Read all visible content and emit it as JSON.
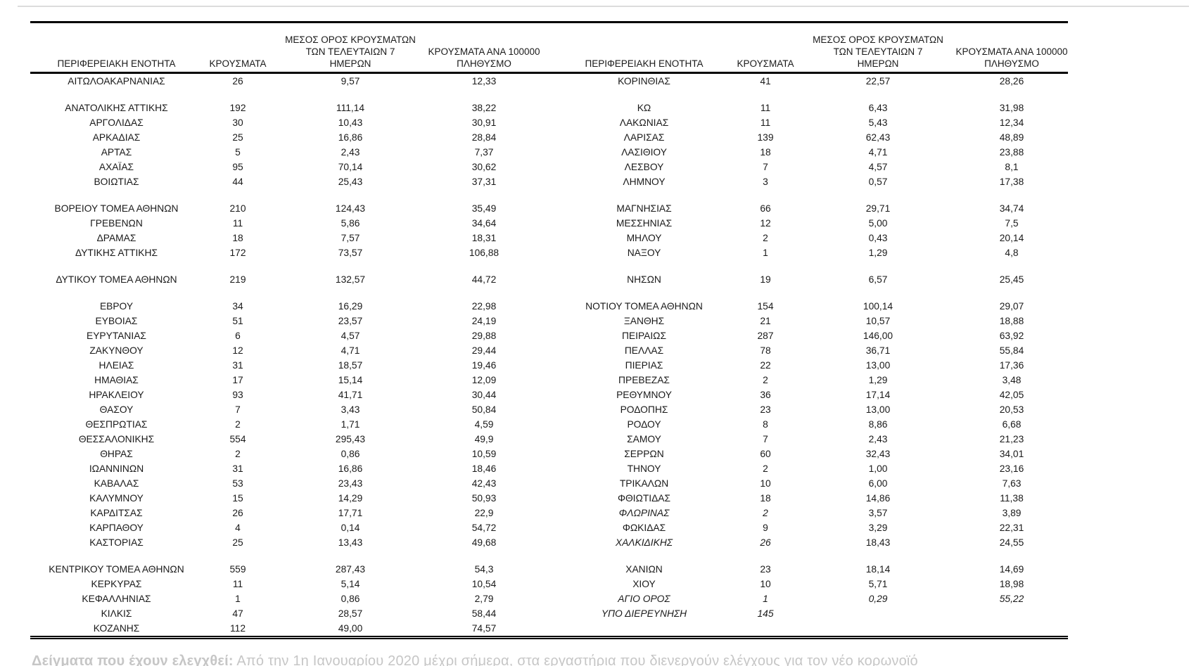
{
  "table": {
    "columns": {
      "region": "ΠΕΡΙΦΕΡΕΙΑΚΗ ΕΝΟΤΗΤΑ",
      "cases": "ΚΡΟΥΣΜΑΤΑ",
      "avg7_line1": "ΜΕΣΟΣ ΟΡΟΣ ΚΡΟΥΣΜΑΤΩΝ",
      "avg7_line2": "ΤΩΝ ΤΕΛΕΥΤΑΙΩΝ 7",
      "avg7_line3": "ΗΜΕΡΩΝ",
      "per100k_line1": "ΚΡΟΥΣΜΑΤΑ ΑΝΑ 100000",
      "per100k_line2": "ΠΛΗΘΥΣΜΟ"
    },
    "rows": [
      {
        "left": [
          "ΑΙΤΩΛΟΑΚΑΡΝΑΝΙΑΣ",
          "26",
          "9,57",
          "12,33"
        ],
        "right": [
          "ΚΟΡΙΝΘΙΑΣ",
          "41",
          "22,57",
          "28,26"
        ]
      },
      {
        "spacer": true
      },
      {
        "left": [
          "ΑΝΑΤΟΛΙΚΗΣ ΑΤΤΙΚΗΣ",
          "192",
          "111,14",
          "38,22"
        ],
        "right": [
          "ΚΩ",
          "11",
          "6,43",
          "31,98"
        ]
      },
      {
        "left": [
          "ΑΡΓΟΛΙΔΑΣ",
          "30",
          "10,43",
          "30,91"
        ],
        "right": [
          "ΛΑΚΩΝΙΑΣ",
          "11",
          "5,43",
          "12,34"
        ]
      },
      {
        "left": [
          "ΑΡΚΑΔΙΑΣ",
          "25",
          "16,86",
          "28,84"
        ],
        "right": [
          "ΛΑΡΙΣΑΣ",
          "139",
          "62,43",
          "48,89"
        ]
      },
      {
        "left": [
          "ΑΡΤΑΣ",
          "5",
          "2,43",
          "7,37"
        ],
        "right": [
          "ΛΑΣΙΘΙΟΥ",
          "18",
          "4,71",
          "23,88"
        ]
      },
      {
        "left": [
          "ΑΧΑΪΑΣ",
          "95",
          "70,14",
          "30,62"
        ],
        "right": [
          "ΛΕΣΒΟΥ",
          "7",
          "4,57",
          "8,1"
        ]
      },
      {
        "left": [
          "ΒΟΙΩΤΙΑΣ",
          "44",
          "25,43",
          "37,31"
        ],
        "right": [
          "ΛΗΜΝΟΥ",
          "3",
          "0,57",
          "17,38"
        ]
      },
      {
        "spacer": true
      },
      {
        "left": [
          "ΒΟΡΕΙΟΥ ΤΟΜΕΑ ΑΘΗΝΩΝ",
          "210",
          "124,43",
          "35,49"
        ],
        "right": [
          "ΜΑΓΝΗΣΙΑΣ",
          "66",
          "29,71",
          "34,74"
        ]
      },
      {
        "left": [
          "ΓΡΕΒΕΝΩΝ",
          "11",
          "5,86",
          "34,64"
        ],
        "right": [
          "ΜΕΣΣΗΝΙΑΣ",
          "12",
          "5,00",
          "7,5"
        ]
      },
      {
        "left": [
          "ΔΡΑΜΑΣ",
          "18",
          "7,57",
          "18,31"
        ],
        "right": [
          "ΜΗΛΟΥ",
          "2",
          "0,43",
          "20,14"
        ]
      },
      {
        "left": [
          "ΔΥΤΙΚΗΣ ΑΤΤΙΚΗΣ",
          "172",
          "73,57",
          "106,88"
        ],
        "right": [
          "ΝΑΞΟΥ",
          "1",
          "1,29",
          "4,8"
        ]
      },
      {
        "spacer": true
      },
      {
        "left": [
          "ΔΥΤΙΚΟΥ ΤΟΜΕΑ ΑΘΗΝΩΝ",
          "219",
          "132,57",
          "44,72"
        ],
        "right": [
          "ΝΗΣΩΝ",
          "19",
          "6,57",
          "25,45"
        ]
      },
      {
        "spacer": true
      },
      {
        "left": [
          "ΕΒΡΟΥ",
          "34",
          "16,29",
          "22,98"
        ],
        "right": [
          "ΝΟΤΙΟΥ ΤΟΜΕΑ ΑΘΗΝΩΝ",
          "154",
          "100,14",
          "29,07"
        ]
      },
      {
        "left": [
          "ΕΥΒΟΙΑΣ",
          "51",
          "23,57",
          "24,19"
        ],
        "right": [
          "ΞΑΝΘΗΣ",
          "21",
          "10,57",
          "18,88"
        ]
      },
      {
        "left": [
          "ΕΥΡΥΤΑΝΙΑΣ",
          "6",
          "4,57",
          "29,88"
        ],
        "right": [
          "ΠΕΙΡΑΙΩΣ",
          "287",
          "146,00",
          "63,92"
        ]
      },
      {
        "left": [
          "ΖΑΚΥΝΘΟΥ",
          "12",
          "4,71",
          "29,44"
        ],
        "right": [
          "ΠΕΛΛΑΣ",
          "78",
          "36,71",
          "55,84"
        ]
      },
      {
        "left": [
          "ΗΛΕΙΑΣ",
          "31",
          "18,57",
          "19,46"
        ],
        "right": [
          "ΠΙΕΡΙΑΣ",
          "22",
          "13,00",
          "17,36"
        ]
      },
      {
        "left": [
          "ΗΜΑΘΙΑΣ",
          "17",
          "15,14",
          "12,09"
        ],
        "right": [
          "ΠΡΕΒΕΖΑΣ",
          "2",
          "1,29",
          "3,48"
        ]
      },
      {
        "left": [
          "ΗΡΑΚΛΕΙΟΥ",
          "93",
          "41,71",
          "30,44"
        ],
        "right": [
          "ΡΕΘΥΜΝΟΥ",
          "36",
          "17,14",
          "42,05"
        ]
      },
      {
        "left": [
          "ΘΑΣΟΥ",
          "7",
          "3,43",
          "50,84"
        ],
        "right": [
          "ΡΟΔΟΠΗΣ",
          "23",
          "13,00",
          "20,53"
        ]
      },
      {
        "left": [
          "ΘΕΣΠΡΩΤΙΑΣ",
          "2",
          "1,71",
          "4,59"
        ],
        "right": [
          "ΡΟΔΟΥ",
          "8",
          "8,86",
          "6,68"
        ]
      },
      {
        "left": [
          "ΘΕΣΣΑΛΟΝΙΚΗΣ",
          "554",
          "295,43",
          "49,9"
        ],
        "right": [
          "ΣΑΜΟΥ",
          "7",
          "2,43",
          "21,23"
        ]
      },
      {
        "left": [
          "ΘΗΡΑΣ",
          "2",
          "0,86",
          "10,59"
        ],
        "right": [
          "ΣΕΡΡΩΝ",
          "60",
          "32,43",
          "34,01"
        ]
      },
      {
        "left": [
          "ΙΩΑΝΝΙΝΩΝ",
          "31",
          "16,86",
          "18,46"
        ],
        "right": [
          "ΤΗΝΟΥ",
          "2",
          "1,00",
          "23,16"
        ]
      },
      {
        "left": [
          "ΚΑΒΑΛΑΣ",
          "53",
          "23,43",
          "42,43"
        ],
        "right": [
          "ΤΡΙΚΑΛΩΝ",
          "10",
          "6,00",
          "7,63"
        ]
      },
      {
        "left": [
          "ΚΑΛΥΜΝΟΥ",
          "15",
          "14,29",
          "50,93"
        ],
        "right": [
          "ΦΘΙΩΤΙΔΑΣ",
          "18",
          "14,86",
          "11,38"
        ]
      },
      {
        "left": [
          "ΚΑΡΔΙΤΣΑΣ",
          "26",
          "17,71",
          "22,9"
        ],
        "right": [
          "ΦΛΩΡΙΝΑΣ",
          "2",
          "3,57",
          "3,89"
        ],
        "right_italics": [
          1,
          1,
          0,
          0
        ]
      },
      {
        "left": [
          "ΚΑΡΠΑΘΟΥ",
          "4",
          "0,14",
          "54,72"
        ],
        "right": [
          "ΦΩΚΙΔΑΣ",
          "9",
          "3,29",
          "22,31"
        ]
      },
      {
        "left": [
          "ΚΑΣΤΟΡΙΑΣ",
          "25",
          "13,43",
          "49,68"
        ],
        "right": [
          "ΧΑΛΚΙΔΙΚΗΣ",
          "26",
          "18,43",
          "24,55"
        ],
        "right_italics": [
          1,
          1,
          0,
          0
        ]
      },
      {
        "spacer": true
      },
      {
        "left": [
          "ΚΕΝΤΡΙΚΟΥ ΤΟΜΕΑ ΑΘΗΝΩΝ",
          "559",
          "287,43",
          "54,3"
        ],
        "right": [
          "ΧΑΝΙΩΝ",
          "23",
          "18,14",
          "14,69"
        ]
      },
      {
        "left": [
          "ΚΕΡΚΥΡΑΣ",
          "11",
          "5,14",
          "10,54"
        ],
        "right": [
          "ΧΙΟΥ",
          "10",
          "5,71",
          "18,98"
        ]
      },
      {
        "left": [
          "ΚΕΦΑΛΛΗΝΙΑΣ",
          "1",
          "0,86",
          "2,79"
        ],
        "right": [
          "ΑΓΙΟ ΟΡΟΣ",
          "1",
          "0,29",
          "55,22"
        ],
        "right_italics": [
          1,
          1,
          1,
          1
        ]
      },
      {
        "left": [
          "ΚΙΛΚΙΣ",
          "47",
          "28,57",
          "58,44"
        ],
        "right": [
          "ΥΠΟ ΔΙΕΡΕΥΝΗΣΗ",
          "145",
          "",
          ""
        ],
        "right_italics": [
          1,
          1,
          0,
          0
        ]
      },
      {
        "left": [
          "ΚΟΖΑΝΗΣ",
          "112",
          "49,00",
          "74,57"
        ],
        "right": [
          "",
          "",
          "",
          ""
        ]
      }
    ]
  },
  "footnote": {
    "lead": "Δείγματα που έχουν ελεγχθεί:",
    "text": " Από την 1η Ιανουαρίου 2020 μέχρι σήμερα, στα εργαστήρια που διενεργούν ελέγχους για τον νέο κορωνοϊό"
  },
  "colors": {
    "text": "#1a1a1a",
    "table_border": "#000000",
    "top_rule": "#dcdcdc",
    "footnote_text": "#c6c6c6"
  }
}
